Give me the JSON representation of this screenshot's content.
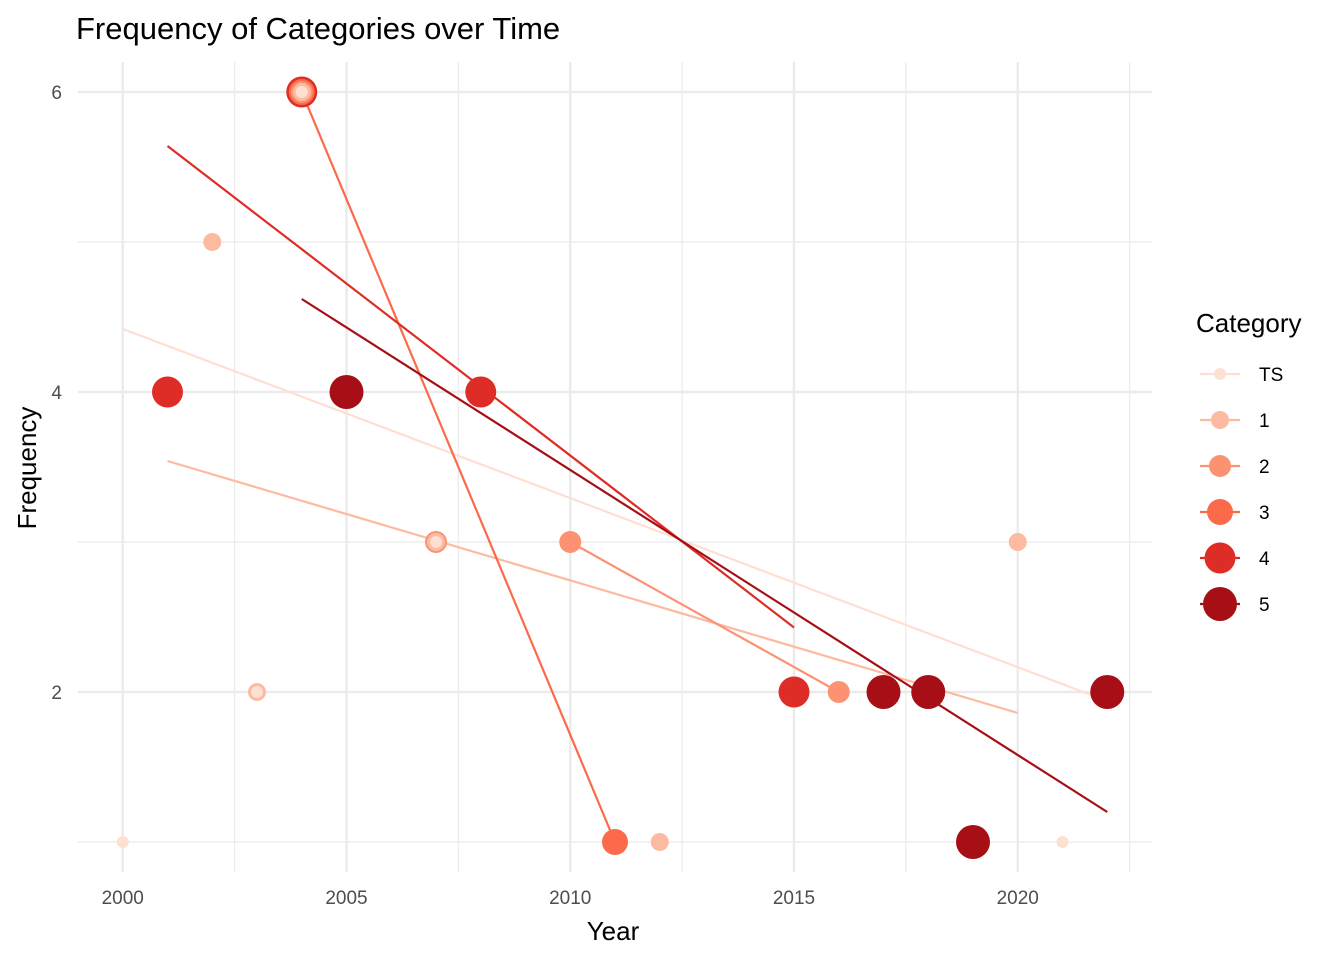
{
  "chart_data": {
    "type": "scatter",
    "title": "Frequency of Categories over Time",
    "xlabel": "Year",
    "ylabel": "Frequency",
    "xlim": [
      1999.0,
      2023.0
    ],
    "ylim": [
      0.8,
      6.2
    ],
    "x_ticks": [
      2000,
      2005,
      2010,
      2015,
      2020
    ],
    "y_ticks": [
      2,
      4,
      6
    ],
    "grid": true,
    "legend": {
      "title": "Category",
      "position": "right"
    },
    "series": [
      {
        "name": "TS",
        "color": "#fee0d2",
        "points": [
          [
            2000,
            1
          ],
          [
            2003,
            2
          ],
          [
            2004,
            6
          ],
          [
            2007,
            3
          ],
          [
            2021,
            1
          ]
        ],
        "trend": [
          [
            2000,
            4.42
          ],
          [
            2022,
            1.94
          ]
        ]
      },
      {
        "name": "1",
        "color": "#fcbba1",
        "points": [
          [
            2002,
            5
          ],
          [
            2003,
            2
          ],
          [
            2004,
            6
          ],
          [
            2007,
            3
          ],
          [
            2012,
            1
          ],
          [
            2020,
            3
          ]
        ],
        "trend": [
          [
            2001,
            3.54
          ],
          [
            2020,
            1.86
          ]
        ]
      },
      {
        "name": "2",
        "color": "#fc9272",
        "points": [
          [
            2004,
            6
          ],
          [
            2007,
            3
          ],
          [
            2010,
            3
          ],
          [
            2016,
            2
          ]
        ],
        "trend": [
          [
            2010,
            3.0
          ],
          [
            2016,
            2.0
          ]
        ]
      },
      {
        "name": "3",
        "color": "#fb6a4a",
        "points": [
          [
            2004,
            6
          ],
          [
            2011,
            1
          ]
        ],
        "trend": [
          [
            2004,
            6.0
          ],
          [
            2011,
            1.0
          ]
        ]
      },
      {
        "name": "4",
        "color": "#de2d26",
        "points": [
          [
            2001,
            4
          ],
          [
            2004,
            6
          ],
          [
            2008,
            4
          ],
          [
            2015,
            2
          ]
        ],
        "trend": [
          [
            2001,
            5.64
          ],
          [
            2015,
            2.43
          ]
        ]
      },
      {
        "name": "5",
        "color": "#a50f15",
        "points": [
          [
            2005,
            4
          ],
          [
            2017,
            2
          ],
          [
            2018,
            2
          ],
          [
            2019,
            1
          ],
          [
            2022,
            2
          ]
        ],
        "trend": [
          [
            2004,
            4.62
          ],
          [
            2022,
            1.2
          ]
        ]
      }
    ]
  }
}
